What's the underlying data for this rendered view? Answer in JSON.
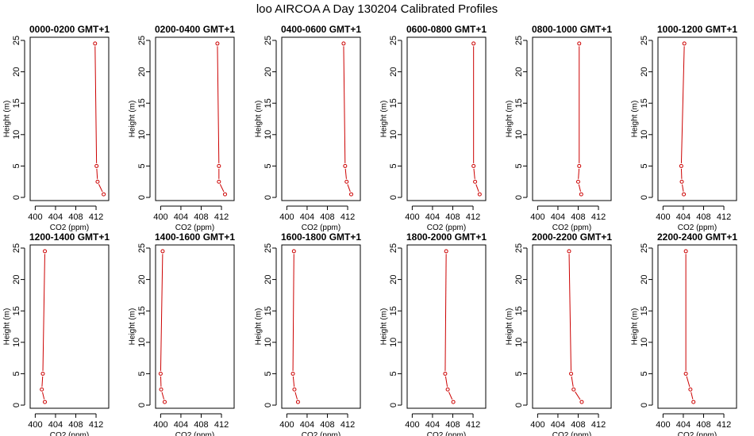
{
  "figure_title": "loo AIRCOA A  Day 130204  Calibrated Profiles",
  "chart_data": {
    "type": "line",
    "line_color": "#cc0000",
    "marker": "open-circle",
    "xlabel": "CO2 (ppm)",
    "ylabel": "Height (m)",
    "xlim": [
      399,
      414.5
    ],
    "ylim": [
      -0.5,
      25.5
    ],
    "xticks": [
      400,
      404,
      408,
      412
    ],
    "yticks": [
      0,
      5,
      10,
      15,
      20,
      25
    ],
    "heights": [
      24.5,
      5,
      2.5,
      0.5
    ],
    "panels": [
      {
        "title": "0000-0200 GMT+1",
        "co2": [
          411.8,
          412.1,
          412.3,
          413.5
        ]
      },
      {
        "title": "0200-0400 GMT+1",
        "co2": [
          411.2,
          411.5,
          411.5,
          412.7
        ]
      },
      {
        "title": "0400-0600 GMT+1",
        "co2": [
          411.2,
          411.5,
          411.8,
          412.7
        ]
      },
      {
        "title": "0600-0800 GMT+1",
        "co2": [
          412.1,
          412.1,
          412.4,
          413.3
        ]
      },
      {
        "title": "0800-1000 GMT+1",
        "co2": [
          408.2,
          408.2,
          408.0,
          408.6
        ]
      },
      {
        "title": "1000-1200 GMT+1",
        "co2": [
          404.2,
          403.6,
          403.7,
          404.1
        ]
      },
      {
        "title": "1200-1400 GMT+1",
        "co2": [
          401.9,
          401.5,
          401.3,
          401.9
        ]
      },
      {
        "title": "1400-1600 GMT+1",
        "co2": [
          400.4,
          400.0,
          400.1,
          400.8
        ]
      },
      {
        "title": "1600-1800 GMT+1",
        "co2": [
          401.4,
          401.2,
          401.5,
          402.2
        ]
      },
      {
        "title": "1800-2000 GMT+1",
        "co2": [
          406.7,
          406.5,
          407.0,
          408.1
        ]
      },
      {
        "title": "2000-2200 GMT+1",
        "co2": [
          406.2,
          406.6,
          407.1,
          408.7
        ]
      },
      {
        "title": "2200-2400 GMT+1",
        "co2": [
          404.5,
          404.5,
          405.4,
          406.0
        ]
      }
    ]
  }
}
